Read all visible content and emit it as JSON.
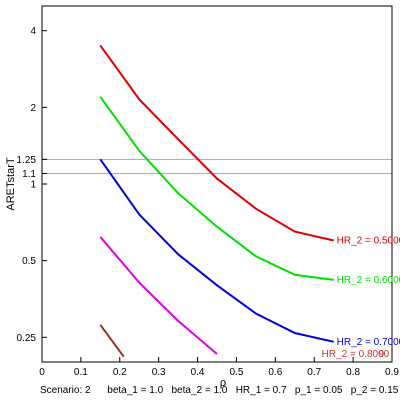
{
  "chart_data": {
    "type": "line",
    "xlabel": "ρ",
    "ylabel": "ARETstarT",
    "xlim": [
      0,
      0.9
    ],
    "ylim_log": [
      0.2,
      5.0
    ],
    "y_scale": "log",
    "x_ticks": [
      0,
      0.1,
      0.2,
      0.3,
      0.4,
      0.5,
      0.6,
      0.7,
      0.8,
      0.9
    ],
    "x_tick_labels": [
      "0",
      "0.1",
      "0.2",
      "0.3",
      "0.4",
      "0.5",
      "0.6",
      "0.7",
      "0.8",
      "0.9"
    ],
    "y_ticks": [
      0.25,
      0.5,
      1,
      1.1,
      1.25,
      2,
      4
    ],
    "y_tick_labels": [
      "0.25",
      "0.5",
      "1",
      "1.1",
      "1.25",
      "2",
      "4"
    ],
    "reference_lines": [
      1.1,
      1.25
    ],
    "series": [
      {
        "color": "#e00000",
        "x": [
          0.15,
          0.25,
          0.35,
          0.45,
          0.55,
          0.65,
          0.75
        ],
        "y": [
          3.5,
          2.15,
          1.5,
          1.05,
          0.8,
          0.65,
          0.6
        ],
        "label": "HR_2 = 0.5000"
      },
      {
        "color": "#00e000",
        "x": [
          0.15,
          0.25,
          0.35,
          0.45,
          0.55,
          0.65,
          0.75
        ],
        "y": [
          2.2,
          1.35,
          0.92,
          0.68,
          0.52,
          0.44,
          0.42
        ],
        "label": "HR_2 = 0.6000"
      },
      {
        "color": "#0000e0",
        "x": [
          0.15,
          0.25,
          0.35,
          0.45,
          0.55,
          0.65,
          0.75
        ],
        "y": [
          1.25,
          0.76,
          0.53,
          0.4,
          0.31,
          0.26,
          0.24
        ],
        "label": "HR_2 = 0.7000"
      },
      {
        "color": "#e000e0",
        "x": [
          0.15,
          0.25,
          0.35,
          0.45
        ],
        "y": [
          0.62,
          0.41,
          0.29,
          0.215
        ],
        "label": ""
      },
      {
        "color": "#993322",
        "x": [
          0.15,
          0.21
        ],
        "y": [
          0.28,
          0.21
        ],
        "label": ""
      }
    ],
    "overlap_label": {
      "text": "HR_2 = 0.8000",
      "second_digit_overlay": "9",
      "color": "#cc3333",
      "x": 0.75,
      "y": 0.215
    },
    "scenario_text": "Scenario: 2      beta_1 = 1.0   beta_2 = 1.0   HR_1 = 0.7   p_1 = 0.05   p_2 = 0.15"
  }
}
